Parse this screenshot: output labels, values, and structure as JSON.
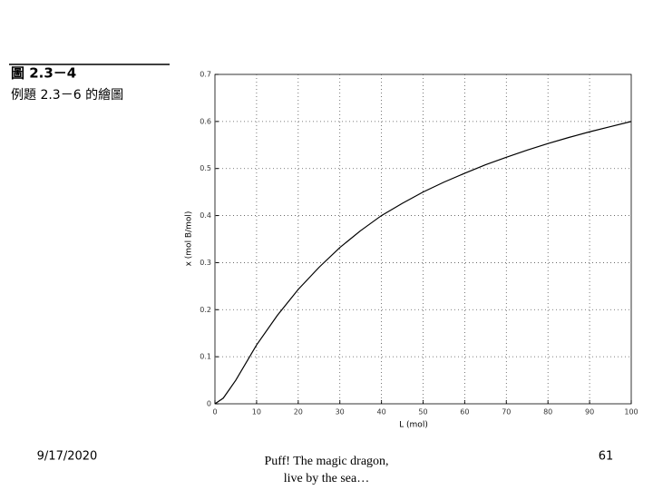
{
  "slide": {
    "figure_label": "圖 2.3－4",
    "caption": "例題 2.3－6 的繪圖",
    "date": "9/17/2020",
    "footer_line1": "Puff! The magic dragon,",
    "footer_line2": "live by the sea…",
    "page_number": "61"
  },
  "chart_data": {
    "type": "line",
    "x_label": "L (mol)",
    "y_label": "x (mol B/mol)",
    "x": [
      0,
      2,
      5,
      10,
      15,
      20,
      25,
      30,
      35,
      40,
      45,
      50,
      55,
      60,
      65,
      70,
      75,
      80,
      85,
      90,
      95,
      100
    ],
    "series": [
      {
        "color": "#000000",
        "values": [
          0,
          0.012,
          0.05,
          0.125,
          0.188,
          0.243,
          0.29,
          0.332,
          0.368,
          0.4,
          0.426,
          0.45,
          0.471,
          0.49,
          0.508,
          0.524,
          0.539,
          0.553,
          0.566,
          0.578,
          0.589,
          0.6
        ]
      }
    ],
    "xlim": [
      0,
      100
    ],
    "ylim": [
      0,
      0.7
    ],
    "xticks": [
      0,
      10,
      20,
      30,
      40,
      50,
      60,
      70,
      80,
      90,
      100
    ],
    "yticks": [
      0,
      0.1,
      0.2,
      0.3,
      0.4,
      0.5,
      0.6,
      0.7
    ],
    "grid": true
  }
}
